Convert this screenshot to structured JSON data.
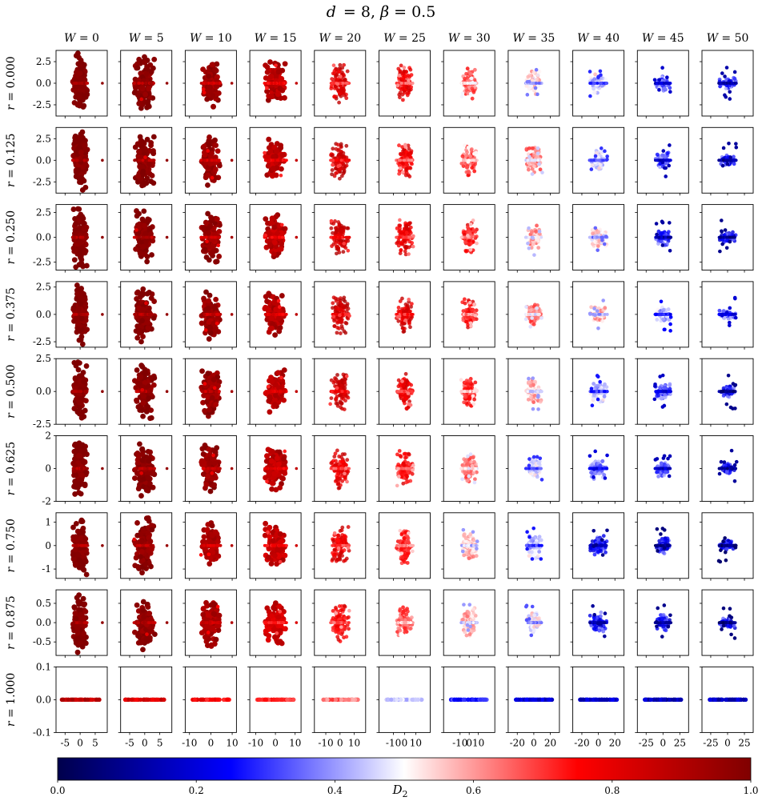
{
  "chart_data": {
    "type": "scatter",
    "title_parts": {
      "d_sym": "d",
      "d_val": "8",
      "beta_sym": "β",
      "beta_val": "0.5"
    },
    "col_param": "W",
    "row_param": "r",
    "W_values": [
      "0",
      "5",
      "10",
      "15",
      "20",
      "25",
      "30",
      "35",
      "40",
      "45",
      "50"
    ],
    "r_values": [
      "0.000",
      "0.125",
      "0.250",
      "0.375",
      "0.500",
      "0.625",
      "0.750",
      "0.875",
      "1.000"
    ],
    "xlims": [
      [
        -8,
        9
      ],
      [
        -8,
        9
      ],
      [
        -12,
        12
      ],
      [
        -13,
        13
      ],
      [
        -18,
        18
      ],
      [
        -23,
        23
      ],
      [
        -28,
        28
      ],
      [
        -31,
        31
      ],
      [
        -31,
        31
      ],
      [
        -38,
        38
      ],
      [
        -38,
        38
      ]
    ],
    "ylims": [
      [
        -3.8,
        3.8
      ],
      [
        -3.8,
        3.8
      ],
      [
        -3.3,
        3.3
      ],
      [
        -3.0,
        3.0
      ],
      [
        -2.5,
        2.5
      ],
      [
        -2.0,
        2.0
      ],
      [
        -1.4,
        1.4
      ],
      [
        -0.85,
        0.85
      ],
      [
        -0.1,
        0.1
      ]
    ],
    "x_tick_labels": [
      [
        "-5",
        "0",
        "5"
      ],
      [
        "-5",
        "0",
        "5"
      ],
      [
        "-10",
        "0",
        "10"
      ],
      [
        "-10",
        "0",
        "10"
      ],
      [
        "-10",
        "0",
        "10"
      ],
      [
        "-10",
        "0",
        "10"
      ],
      [
        "-10",
        "0",
        "10"
      ],
      [
        "-20",
        "0",
        "20"
      ],
      [
        "-20",
        "0",
        "20"
      ],
      [
        "-25",
        "0",
        "25"
      ],
      [
        "-25",
        "0",
        "25"
      ]
    ],
    "y_tick_labels": [
      [
        "2.5",
        "0.0",
        "-2.5"
      ],
      [
        "2.5",
        "0.0",
        "-2.5"
      ],
      [
        "2.5",
        "0.0",
        "-2.5"
      ],
      [
        "2.5",
        "0.0",
        "-2.5"
      ],
      [
        "2.5",
        "0.0",
        "-2.5"
      ],
      [
        "2",
        "0",
        "-2"
      ],
      [
        "1",
        "0",
        "-1"
      ],
      [
        "0.5",
        "0.0",
        "-0.5"
      ],
      [
        "0.1",
        "0.0",
        "-0.1"
      ]
    ],
    "d2_typical": [
      [
        0.97,
        0.96,
        0.93,
        0.87,
        0.8,
        0.76,
        0.64,
        0.52,
        0.44,
        0.33,
        0.28
      ],
      [
        0.97,
        0.96,
        0.93,
        0.86,
        0.83,
        0.75,
        0.66,
        0.6,
        0.45,
        0.3,
        0.26
      ],
      [
        0.97,
        0.96,
        0.93,
        0.87,
        0.84,
        0.78,
        0.72,
        0.58,
        0.5,
        0.27,
        0.24
      ],
      [
        0.97,
        0.96,
        0.93,
        0.88,
        0.84,
        0.8,
        0.72,
        0.62,
        0.55,
        0.4,
        0.34
      ],
      [
        0.97,
        0.96,
        0.93,
        0.87,
        0.83,
        0.78,
        0.68,
        0.55,
        0.42,
        0.32,
        0.24
      ],
      [
        0.97,
        0.96,
        0.93,
        0.87,
        0.78,
        0.73,
        0.62,
        0.45,
        0.35,
        0.3,
        0.26
      ],
      [
        0.97,
        0.95,
        0.9,
        0.84,
        0.78,
        0.7,
        0.55,
        0.42,
        0.24,
        0.22,
        0.2
      ],
      [
        0.97,
        0.95,
        0.9,
        0.82,
        0.74,
        0.65,
        0.55,
        0.48,
        0.26,
        0.24,
        0.22
      ],
      [
        0.93,
        0.88,
        0.82,
        0.76,
        0.7,
        0.52,
        0.34,
        0.26,
        0.24,
        0.22,
        0.22
      ]
    ],
    "colorbar": {
      "label_sym": "D",
      "label_sub": "2",
      "ticks": [
        "0.0",
        "0.2",
        "0.4",
        "0.6",
        "0.8",
        "1.0"
      ],
      "range": [
        0.0,
        1.0
      ],
      "colormap": [
        "#00004c",
        "#0000ff",
        "#ffffff",
        "#ff0000",
        "#800000"
      ]
    },
    "legend": "none",
    "grid": false
  }
}
